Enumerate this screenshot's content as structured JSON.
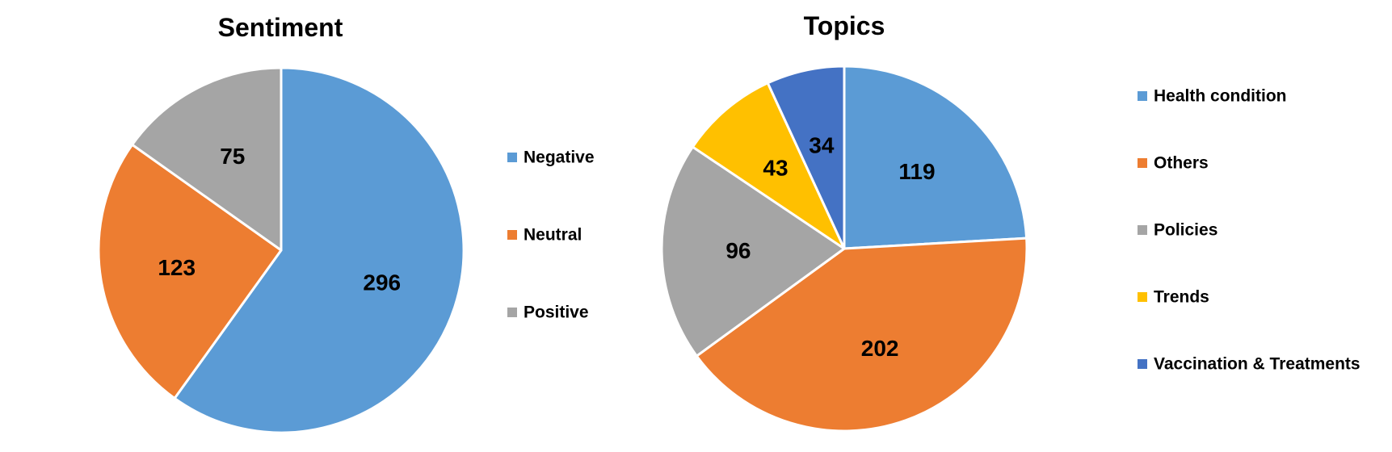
{
  "chart_data": [
    {
      "type": "pie",
      "title": "Sentiment",
      "categories": [
        "Negative",
        "Neutral",
        "Positive"
      ],
      "values": [
        296,
        123,
        75
      ],
      "colors": [
        "#5B9BD5",
        "#ED7D31",
        "#A5A5A5"
      ],
      "legend": "right"
    },
    {
      "type": "pie",
      "title": "Topics",
      "categories": [
        "Health condition",
        "Others",
        "Policies",
        "Trends",
        "Vaccination & Treatments"
      ],
      "values": [
        119,
        202,
        96,
        43,
        34
      ],
      "colors": [
        "#5B9BD5",
        "#ED7D31",
        "#A5A5A5",
        "#FFC000",
        "#4472C4"
      ],
      "legend": "right"
    }
  ]
}
